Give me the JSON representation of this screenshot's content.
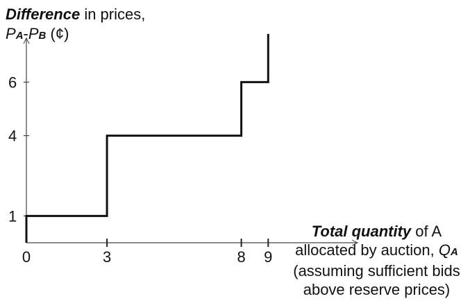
{
  "chart_data": {
    "type": "line",
    "step": true,
    "ylabel": {
      "bold": "Difference",
      "rest": " in prices,",
      "line2_p1": "P",
      "line2_sub1": "A",
      "line2_dash": "-",
      "line2_p2": "P",
      "line2_sub2": "B",
      "line2_unit": " (¢)"
    },
    "xlabel": {
      "bold": "Total quantity",
      "rest": " of A",
      "line2": "allocated by auction, ",
      "line2_q": "Q",
      "line2_sub": "A",
      "line3": "(assuming sufficient bids",
      "line4": "above reserve prices)"
    },
    "x_ticks": [
      0,
      3,
      8,
      9
    ],
    "y_ticks": [
      1,
      4,
      6
    ],
    "xlim": [
      0,
      9.2
    ],
    "ylim": [
      0,
      7.8
    ],
    "series": [
      {
        "x": [
          0,
          0,
          3,
          3,
          8,
          8,
          9,
          9
        ],
        "y": [
          0,
          1,
          1,
          4,
          4,
          6,
          6,
          7.8
        ]
      }
    ],
    "grid": false
  }
}
